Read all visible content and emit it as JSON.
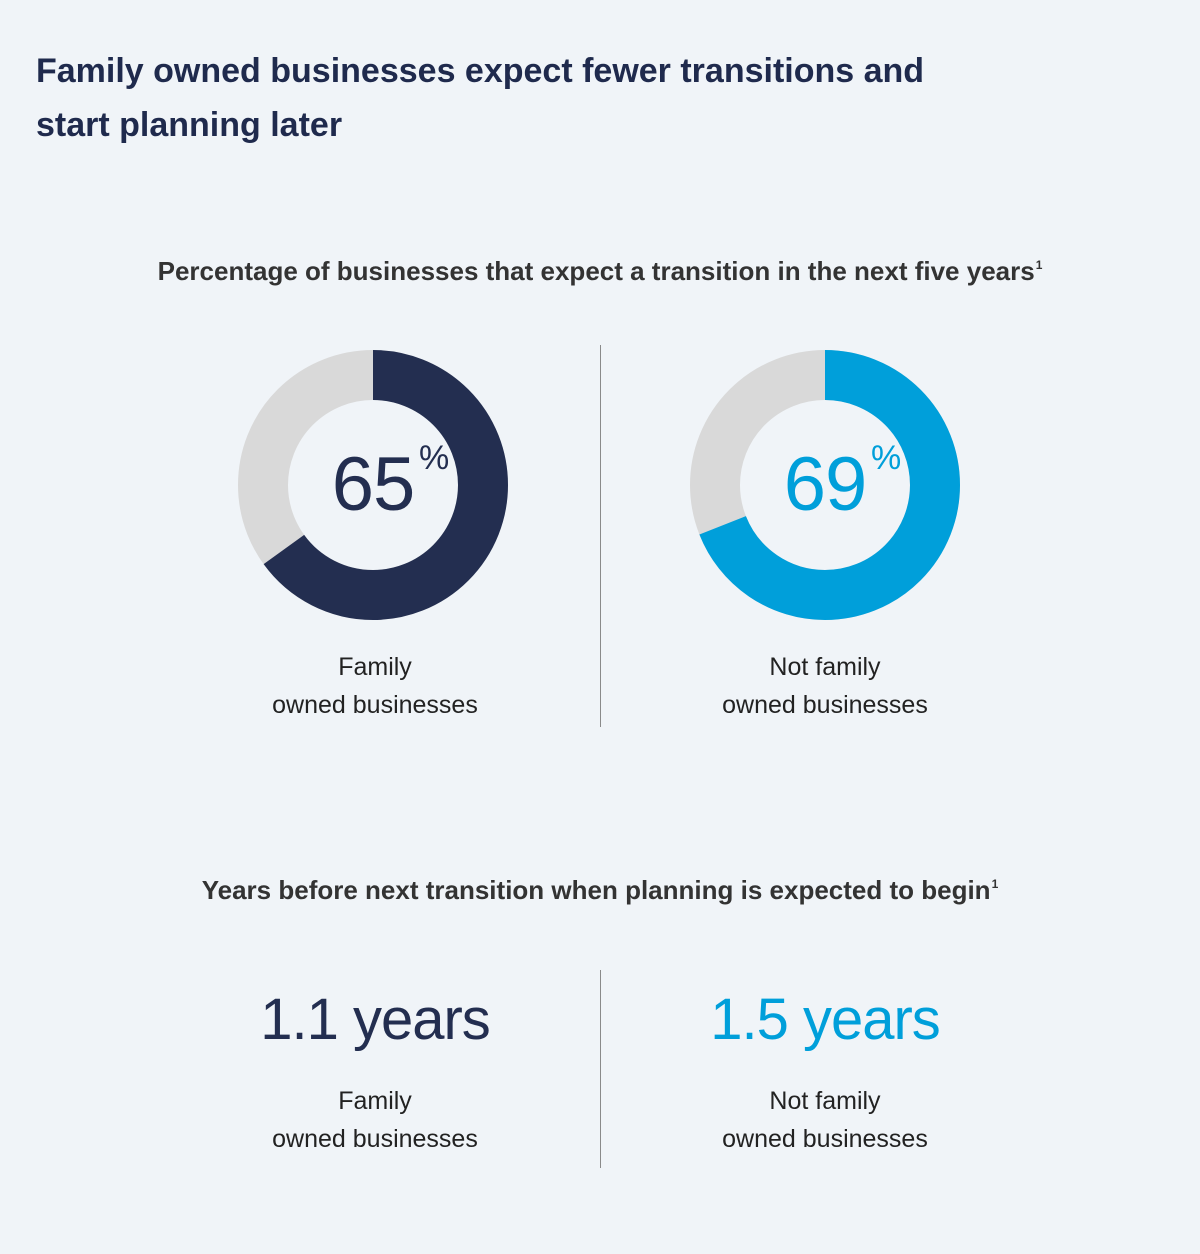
{
  "title": {
    "line1": "Family owned businesses expect fewer transitions and",
    "line2": "start planning later"
  },
  "colors": {
    "family": "#232e50",
    "not_family": "#009fda",
    "track": "#d9d9d9"
  },
  "chart_data": [
    {
      "type": "pie",
      "title": "Percentage of businesses that expect a transition in the next five years",
      "title_footnote": "1",
      "series": [
        {
          "name": "Family owned businesses",
          "label_line1": "Family",
          "label_line2": "owned businesses",
          "value": 65,
          "display": "65",
          "unit": "%"
        },
        {
          "name": "Not family owned businesses",
          "label_line1": "Not family",
          "label_line2": "owned businesses",
          "value": 69,
          "display": "69",
          "unit": "%"
        }
      ]
    },
    {
      "type": "table",
      "title": "Years before next transition when planning is expected to begin",
      "title_footnote": "1",
      "series": [
        {
          "name": "Family owned businesses",
          "label_line1": "Family",
          "label_line2": "owned businesses",
          "value": 1.1,
          "display": "1.1 years"
        },
        {
          "name": "Not family owned businesses",
          "label_line1": "Not family",
          "label_line2": "owned businesses",
          "value": 1.5,
          "display": "1.5 years"
        }
      ]
    }
  ]
}
